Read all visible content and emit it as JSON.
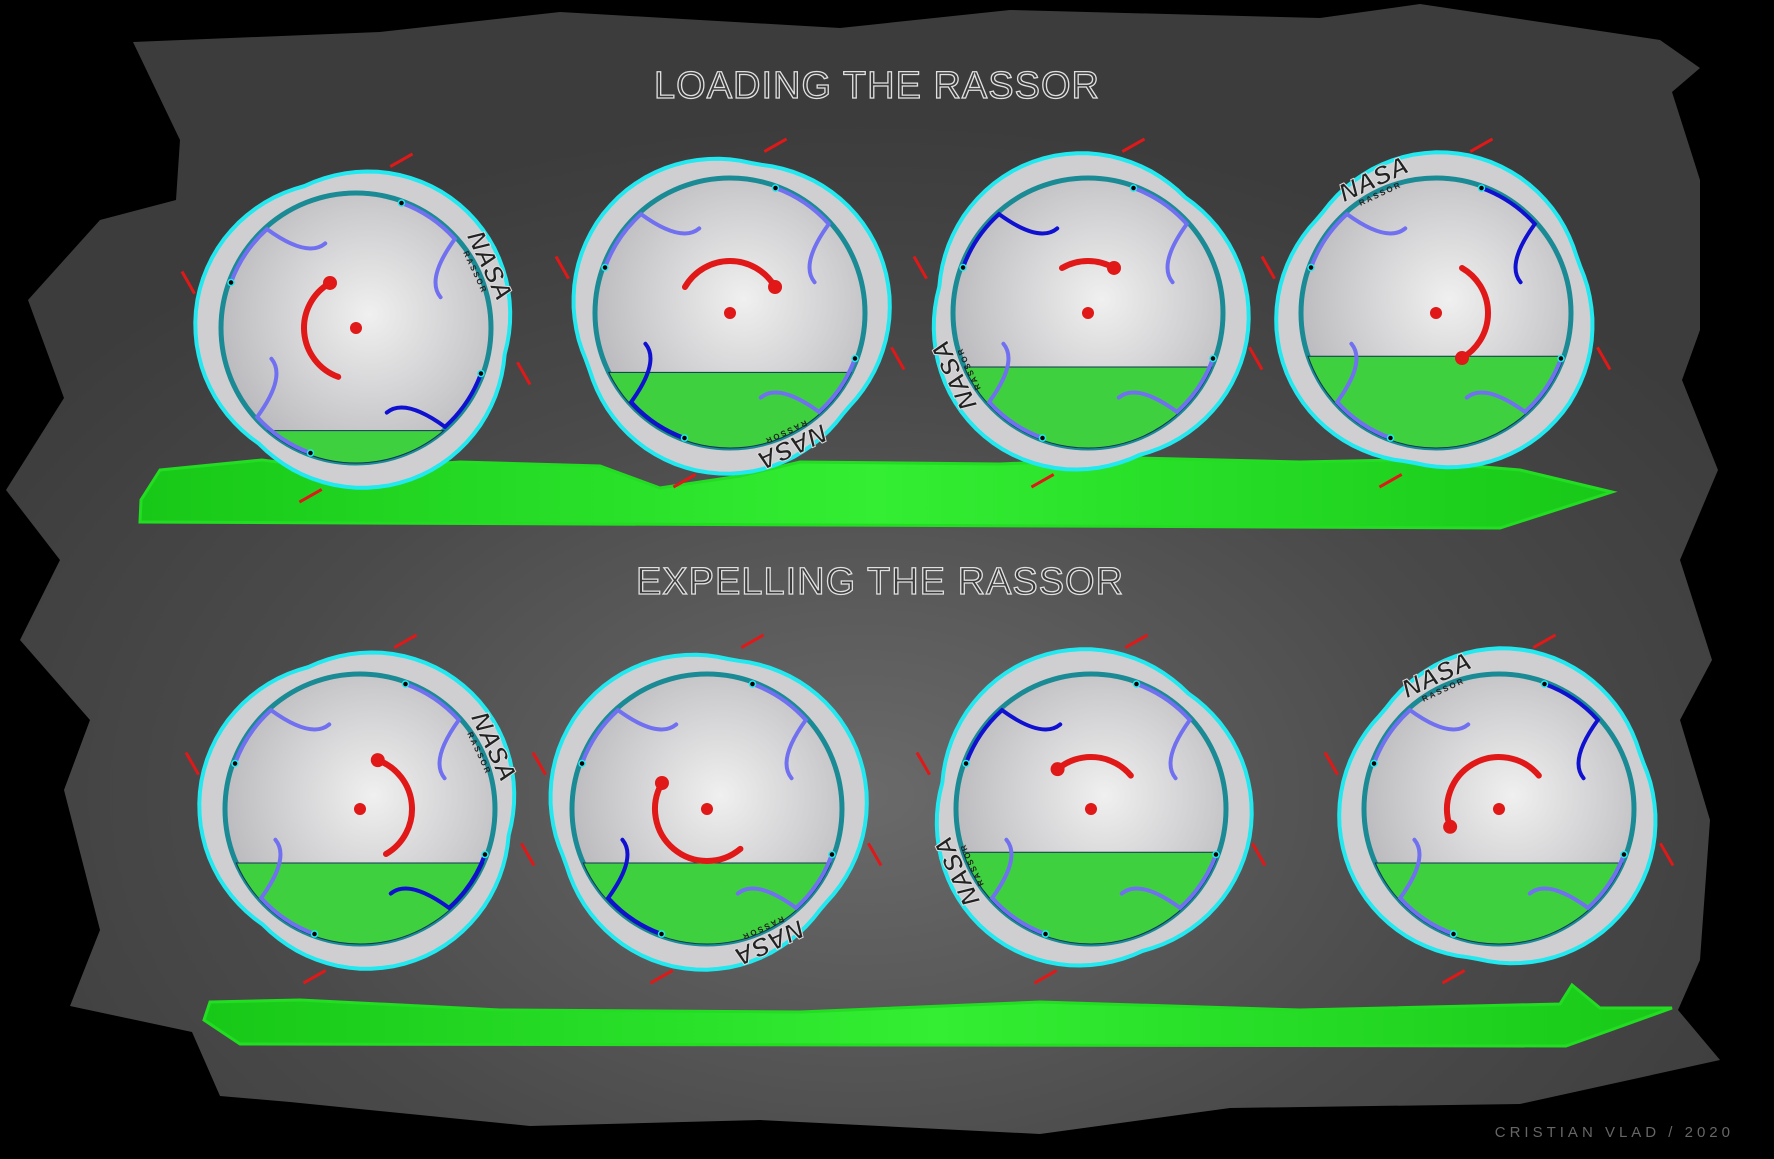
{
  "titles": {
    "loading": "LOADING THE RASSOR",
    "expelling": "EXPELLING THE RASSOR"
  },
  "credit": "CRISTIAN VLAD / 2020",
  "logo": {
    "main": "NASA",
    "sub": "RASSOR"
  },
  "colors": {
    "background": "#000000",
    "panel": "#4a4a4a",
    "drum_outline": "#22e8f0",
    "drum_fill": "#d4d4d6",
    "regolith": "#22dd22",
    "scoop_arm": "#7070f0",
    "scoop_arm_active": "#1010d0",
    "rotation_arrow": "#e01818"
  },
  "drums": {
    "loading": [
      {
        "rotation_direction": "clockwise"
      },
      {
        "rotation_direction": "clockwise"
      },
      {
        "rotation_direction": "clockwise"
      },
      {
        "rotation_direction": "clockwise"
      }
    ],
    "expelling": [
      {
        "rotation_direction": "counterclockwise"
      },
      {
        "rotation_direction": "counterclockwise"
      },
      {
        "rotation_direction": "counterclockwise"
      },
      {
        "rotation_direction": "counterclockwise"
      }
    ]
  }
}
